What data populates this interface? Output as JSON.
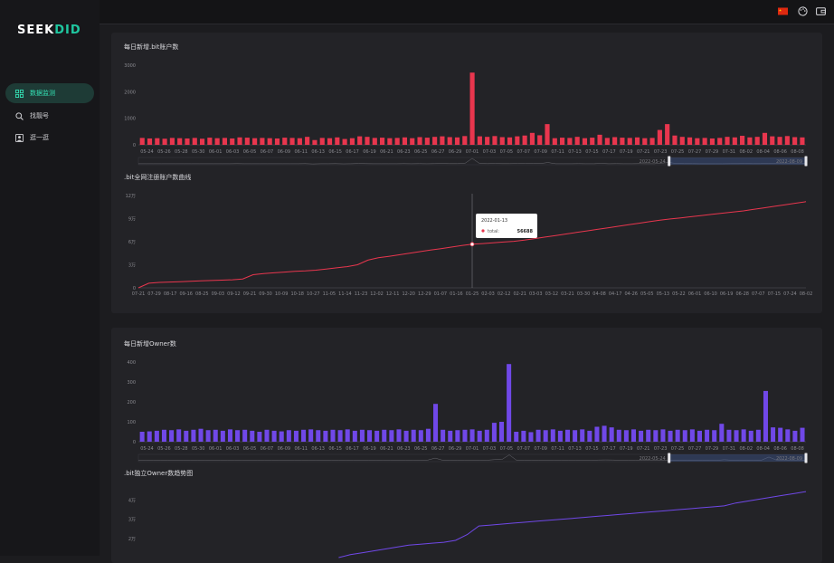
{
  "brand": {
    "name_a": "SEEK",
    "name_b": "DID",
    "accent": "#1fc7a0"
  },
  "nav": [
    {
      "label": "数据监测",
      "icon": "dashboard-icon",
      "active": true
    },
    {
      "label": "找靓号",
      "icon": "search-icon",
      "active": false
    },
    {
      "label": "逛一逛",
      "icon": "explore-icon",
      "active": false
    }
  ],
  "topbar": {
    "icons": [
      "cn-flag-icon",
      "palette-icon",
      "wallet-icon"
    ]
  },
  "charts": {
    "daily_accounts": {
      "title": "每日新增.bit账户数",
      "color": "#e8364e",
      "y_ticks": [
        "3000",
        "2000",
        "1000",
        "0"
      ],
      "x_ticks": [
        "05-24",
        "05-26",
        "05-28",
        "05-30",
        "06-01",
        "06-03",
        "06-05",
        "06-07",
        "06-09",
        "06-11",
        "06-13",
        "06-15",
        "06-17",
        "06-19",
        "06-21",
        "06-23",
        "06-25",
        "06-27",
        "06-29",
        "07-01",
        "07-03",
        "07-05",
        "07-07",
        "07-09",
        "07-11",
        "07-13",
        "07-15",
        "07-17",
        "07-19",
        "07-21",
        "07-23",
        "07-25",
        "07-27",
        "07-29",
        "07-31",
        "08-02",
        "08-04",
        "08-06",
        "08-08"
      ],
      "zoom_start": "2022-05-24",
      "zoom_end": "2022-08-09"
    },
    "total_accounts": {
      "title": ".bit全网注册账户数曲线",
      "color": "#e8364e",
      "y_ticks": [
        "12万",
        "9万",
        "6万",
        "3万",
        "0"
      ],
      "x_ticks": [
        "07-21",
        "07-29",
        "08-17",
        "09-16",
        "08-25",
        "09-03",
        "09-12",
        "09-21",
        "09-30",
        "10-09",
        "10-18",
        "10-27",
        "11-05",
        "11-14",
        "11-23",
        "12-02",
        "12-11",
        "12-20",
        "12-29",
        "01-07",
        "01-16",
        "01-25",
        "02-03",
        "02-12",
        "02-21",
        "03-03",
        "03-12",
        "03-21",
        "03-30",
        "04-08",
        "04-17",
        "04-26",
        "05-05",
        "05-13",
        "05-22",
        "06-01",
        "06-10",
        "06-19",
        "06-28",
        "07-07",
        "07-15",
        "07-24",
        "08-02"
      ],
      "tooltip": {
        "date": "2022-01-13",
        "label": "total:",
        "value": "56688"
      }
    },
    "daily_owners": {
      "title": "每日新增Owner数",
      "color": "#7048e8",
      "y_ticks": [
        "400",
        "300",
        "200",
        "100",
        "0"
      ],
      "x_ticks": [
        "05-24",
        "05-26",
        "05-28",
        "05-30",
        "06-01",
        "06-03",
        "06-05",
        "06-07",
        "06-09",
        "06-11",
        "06-13",
        "06-15",
        "06-17",
        "06-19",
        "06-21",
        "06-23",
        "06-25",
        "06-27",
        "06-29",
        "07-01",
        "07-03",
        "07-05",
        "07-07",
        "07-09",
        "07-11",
        "07-13",
        "07-15",
        "07-17",
        "07-19",
        "07-21",
        "07-23",
        "07-25",
        "07-27",
        "07-29",
        "07-31",
        "08-02",
        "08-04",
        "08-06",
        "08-08"
      ],
      "zoom_start": "2022-05-24",
      "zoom_end": "2022-08-09"
    },
    "total_owners": {
      "title": ".bit独立Owner数趋势图",
      "color": "#7048e8",
      "y_ticks": [
        "4万",
        "3万",
        "2万"
      ]
    }
  },
  "chart_data": [
    {
      "type": "bar",
      "title": "每日新增.bit账户数",
      "ylim": [
        0,
        3000
      ],
      "values": [
        260,
        240,
        250,
        230,
        260,
        250,
        240,
        260,
        230,
        270,
        250,
        260,
        240,
        280,
        270,
        250,
        260,
        250,
        240,
        270,
        260,
        250,
        300,
        180,
        260,
        250,
        280,
        220,
        250,
        320,
        300,
        260,
        270,
        250,
        260,
        280,
        250,
        290,
        270,
        300,
        320,
        290,
        280,
        330,
        2720,
        320,
        300,
        330,
        290,
        280,
        320,
        350,
        450,
        360,
        780,
        250,
        270,
        260,
        300,
        250,
        270,
        380,
        260,
        290,
        270,
        260,
        280,
        250,
        260,
        560,
        780,
        350,
        300,
        280,
        250,
        260,
        240,
        260,
        300,
        280,
        340,
        280,
        300,
        450,
        320,
        300,
        330,
        290,
        280
      ]
    },
    {
      "type": "line",
      "title": ".bit全网注册账户数曲线",
      "ylim": [
        0,
        120000
      ],
      "values": [
        0,
        6000,
        7000,
        7500,
        8000,
        8500,
        9000,
        9500,
        10000,
        10500,
        11500,
        17000,
        18500,
        19500,
        20500,
        21500,
        22000,
        23000,
        24500,
        26000,
        27500,
        30000,
        36000,
        39000,
        41000,
        43000,
        45000,
        47000,
        49000,
        51000,
        53000,
        55000,
        56688,
        57500,
        58500,
        59500,
        60500,
        62000,
        64000,
        66000,
        68000,
        70000,
        72000,
        74000,
        76000,
        78000,
        80000,
        82000,
        84000,
        86000,
        88000,
        89500,
        91000,
        92500,
        94000,
        95500,
        97000,
        98500,
        100000,
        102000,
        104000,
        106000,
        108000,
        110000,
        112000
      ]
    },
    {
      "type": "bar",
      "title": "每日新增Owner数",
      "ylim": [
        0,
        400
      ],
      "values": [
        50,
        52,
        55,
        60,
        58,
        62,
        55,
        60,
        65,
        58,
        60,
        55,
        62,
        58,
        60,
        55,
        50,
        60,
        55,
        52,
        58,
        55,
        60,
        62,
        58,
        55,
        60,
        58,
        62,
        55,
        60,
        58,
        55,
        60,
        58,
        62,
        55,
        60,
        58,
        65,
        190,
        60,
        55,
        58,
        60,
        62,
        55,
        60,
        95,
        100,
        390,
        50,
        55,
        48,
        60,
        58,
        62,
        55,
        60,
        58,
        62,
        55,
        75,
        80,
        72,
        60,
        58,
        62,
        55,
        60,
        58,
        62,
        55,
        60,
        58,
        62,
        55,
        60,
        58,
        90,
        60,
        58,
        62,
        55,
        60,
        255,
        72,
        70,
        62,
        55,
        70
      ]
    },
    {
      "type": "line",
      "title": ".bit独立Owner数趋势图",
      "ylim": [
        10000,
        45000
      ],
      "values": [
        10000,
        11500,
        12500,
        13500,
        14500,
        15500,
        16500,
        17000,
        17500,
        18000,
        19000,
        22000,
        26500,
        27000,
        27500,
        28000,
        28500,
        29000,
        29500,
        30000,
        30500,
        31000,
        31500,
        32000,
        32500,
        33000,
        33500,
        34000,
        34500,
        35000,
        35500,
        36000,
        36500,
        37000,
        38500,
        39500,
        40500,
        41500,
        42500,
        43500,
        44500
      ]
    }
  ]
}
